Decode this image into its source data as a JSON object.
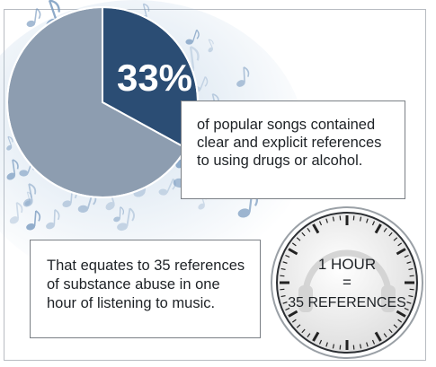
{
  "chart_data": {
    "type": "pie",
    "slices": [
      {
        "label": "33%",
        "value": 33,
        "color": "#2b4d74"
      },
      {
        "label": "",
        "value": 67,
        "color": "#8d9db0"
      }
    ]
  },
  "callouts": {
    "top_text": "of popular songs contained clear and explicit references to using drugs or alcohol.",
    "bottom_text": "That equates to 35 references of substance abuse in one hour of listening to music."
  },
  "clock": {
    "line1": "1 HOUR",
    "line2": "=",
    "line3": "35 REFERENCES",
    "icon": "headphones-icon"
  },
  "colors": {
    "pie_highlight": "#2b4d74",
    "pie_rest": "#8d9db0",
    "notes_tint": "#a9c4de",
    "clock_face": "#eeeeee"
  }
}
